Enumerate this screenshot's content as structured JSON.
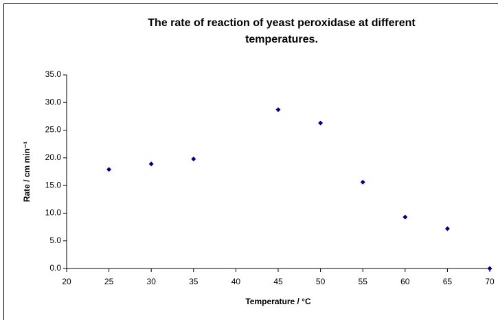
{
  "chart_data": {
    "type": "scatter",
    "title": "The rate of reaction of yeast peroxidase at different temperatures.",
    "x_label": "Temperature / °C",
    "y_label": "Rate / cm min⁻¹",
    "color": "#000080",
    "series": [
      {
        "x": [
          25,
          30,
          35,
          45,
          50,
          55,
          60,
          65,
          70
        ],
        "values": [
          17.9,
          18.9,
          19.8,
          28.7,
          26.3,
          15.6,
          9.3,
          7.2,
          0.0
        ]
      }
    ],
    "xlim": [
      20,
      70
    ],
    "xticks": [
      20,
      25,
      30,
      35,
      40,
      45,
      50,
      55,
      60,
      65,
      70
    ],
    "ylim": [
      0,
      35
    ],
    "yticks": [
      {
        "value": 0,
        "label": "0.0"
      },
      {
        "value": 5,
        "label": "5.0"
      },
      {
        "value": 10,
        "label": "10.0"
      },
      {
        "value": 15,
        "label": "15.0"
      },
      {
        "value": 20,
        "label": "20.0"
      },
      {
        "value": 25,
        "label": "25.0"
      },
      {
        "value": 30,
        "label": "30.0"
      },
      {
        "value": 35,
        "label": "35.0"
      }
    ],
    "grid": false
  }
}
